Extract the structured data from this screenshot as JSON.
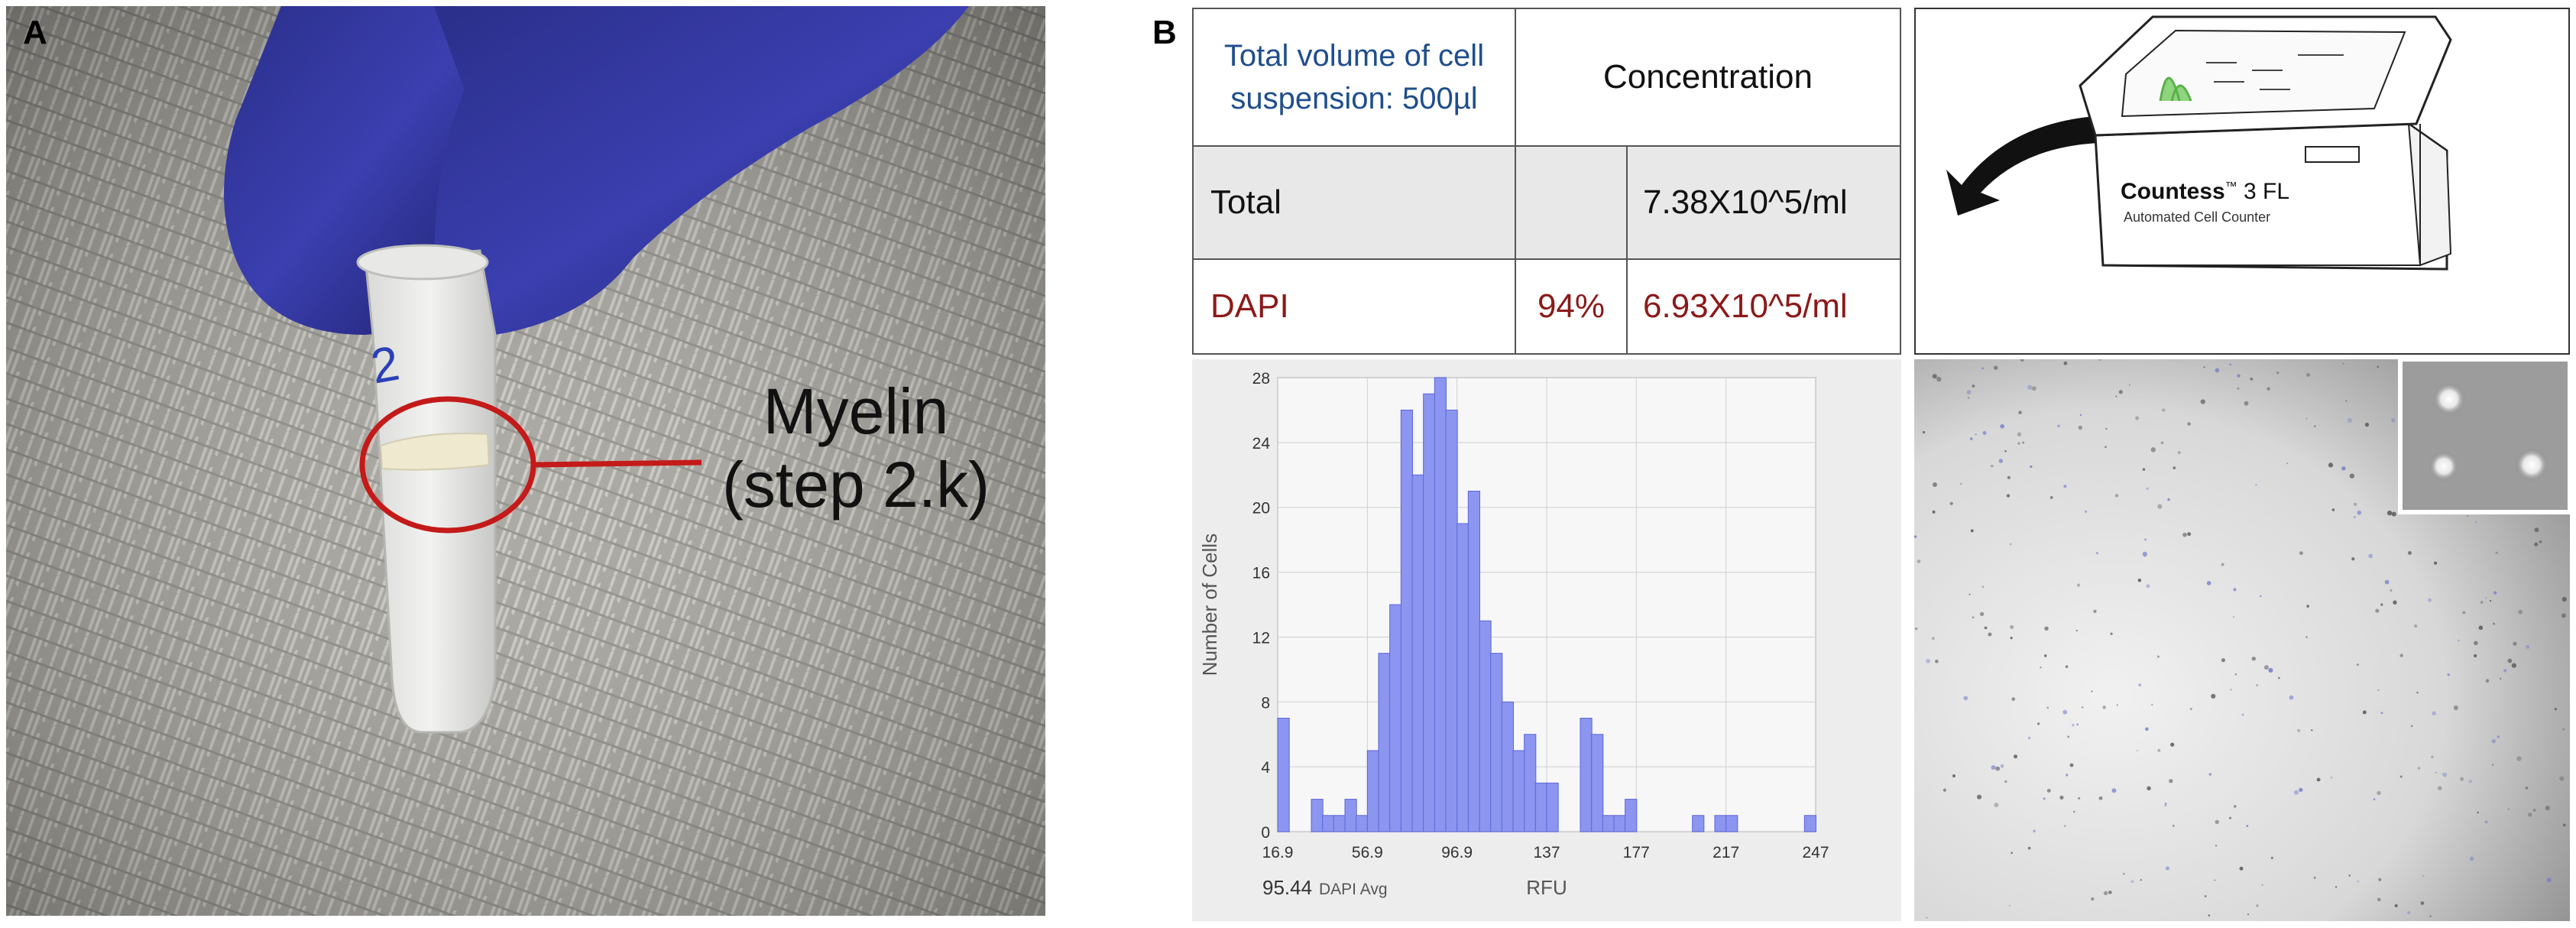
{
  "panel_a": {
    "letter": "A",
    "label_line1": "Myelin",
    "label_line2": "(step 2.k)",
    "tube_number": "2"
  },
  "panel_b": {
    "letter": "B"
  },
  "table": {
    "header_left": [
      "Total volume of cell",
      "suspension: 500µl"
    ],
    "header_right": "Concentration",
    "rows": [
      {
        "name": "Total",
        "percent": "",
        "value": "7.38X10^5/ml"
      },
      {
        "name": "DAPI",
        "percent": "94%",
        "value": "6.93X10^5/ml"
      }
    ]
  },
  "device": {
    "brand": "Countess",
    "model": "3 FL",
    "subtitle": "Automated Cell Counter",
    "trademark": "™"
  },
  "chart_data": {
    "type": "bar",
    "title": "",
    "xlabel": "RFU",
    "ylabel": "Number of Cells",
    "ylim": [
      0,
      28
    ],
    "yticks": [
      "0",
      "4",
      "8",
      "12",
      "16",
      "20",
      "24",
      "28"
    ],
    "xlim": [
      16.9,
      247
    ],
    "xticks": [
      "16.9",
      "56.9",
      "96.9",
      "137",
      "177",
      "217",
      "247"
    ],
    "bin_width": 4.0,
    "bin_start": 16.9,
    "values": [
      7,
      0,
      0,
      2,
      1,
      1,
      2,
      1,
      5,
      11,
      14,
      26,
      22,
      27,
      28,
      26,
      19,
      21,
      13,
      11,
      8,
      5,
      6,
      3,
      3,
      0,
      0,
      7,
      6,
      1,
      1,
      2,
      0,
      0,
      0,
      0,
      0,
      1,
      0,
      1,
      1,
      0,
      0,
      0,
      0,
      0,
      0,
      1
    ],
    "annotation_value": "95.44",
    "annotation_label": "DAPI Avg",
    "bar_color": "#8c96f0"
  }
}
